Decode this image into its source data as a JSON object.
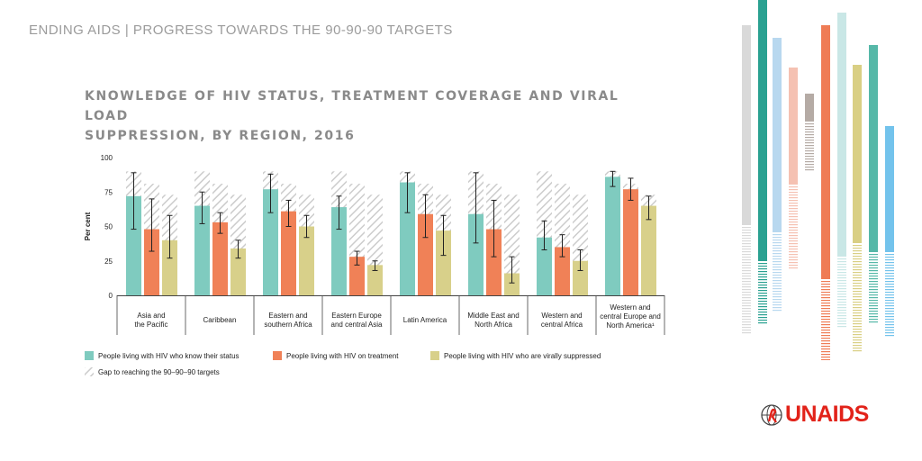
{
  "header": {
    "text": "ENDING AIDS | PROGRESS TOWARDS THE 90-90-90 TARGETS"
  },
  "chart_title": {
    "line1": "KNOWLEDGE OF HIV STATUS, TREATMENT COVERAGE AND VIRAL LOAD",
    "line2": "SUPPRESSION, BY REGION, 2016"
  },
  "logo": {
    "text": "UNAIDS"
  },
  "colors": {
    "know_status": "#7fcbbf",
    "on_treatment": "#f08157",
    "suppressed": "#d8d08a",
    "gap_hatch": "#cccccc",
    "text": "#222222",
    "brand_red": "#e2231a"
  },
  "chart_data": {
    "type": "bar",
    "ylabel": "Per cent",
    "ylim": [
      0,
      100
    ],
    "yticks": [
      0,
      25,
      50,
      75,
      100
    ],
    "categories": [
      [
        "Asia and",
        "the Pacific"
      ],
      [
        "Caribbean"
      ],
      [
        "Eastern and",
        "southern Africa"
      ],
      [
        "Eastern Europe",
        "and central Asia"
      ],
      [
        "Latin America"
      ],
      [
        "Middle East and",
        "North Africa"
      ],
      [
        "Western and",
        "central Africa"
      ],
      [
        "Western and",
        "central Europe and",
        "North America¹"
      ]
    ],
    "targets": [
      90,
      81,
      73
    ],
    "series": [
      {
        "name": "People living with HIV who know their status",
        "color": "#7fcbbf",
        "values": [
          72,
          65,
          77,
          64,
          82,
          59,
          42,
          86
        ],
        "lower": [
          48,
          52,
          60,
          48,
          60,
          38,
          33,
          79
        ],
        "upper": [
          89,
          75,
          88,
          72,
          89,
          89,
          54,
          90
        ]
      },
      {
        "name": "People living with HIV on treatment",
        "color": "#f08157",
        "values": [
          48,
          53,
          61,
          28,
          59,
          48,
          35,
          77
        ],
        "lower": [
          32,
          45,
          50,
          22,
          42,
          28,
          28,
          69
        ],
        "upper": [
          70,
          60,
          69,
          32,
          73,
          69,
          44,
          85
        ]
      },
      {
        "name": "People living with HIV who are virally suppressed",
        "color": "#d8d08a",
        "values": [
          40,
          34,
          50,
          22,
          47,
          16,
          25,
          65
        ],
        "lower": [
          27,
          27,
          42,
          18,
          29,
          9,
          18,
          55
        ],
        "upper": [
          58,
          40,
          58,
          25,
          58,
          28,
          33,
          72
        ]
      }
    ],
    "gap_legend": "Gap to reaching the 90–90–90 targets",
    "legend_position": "bottom"
  }
}
